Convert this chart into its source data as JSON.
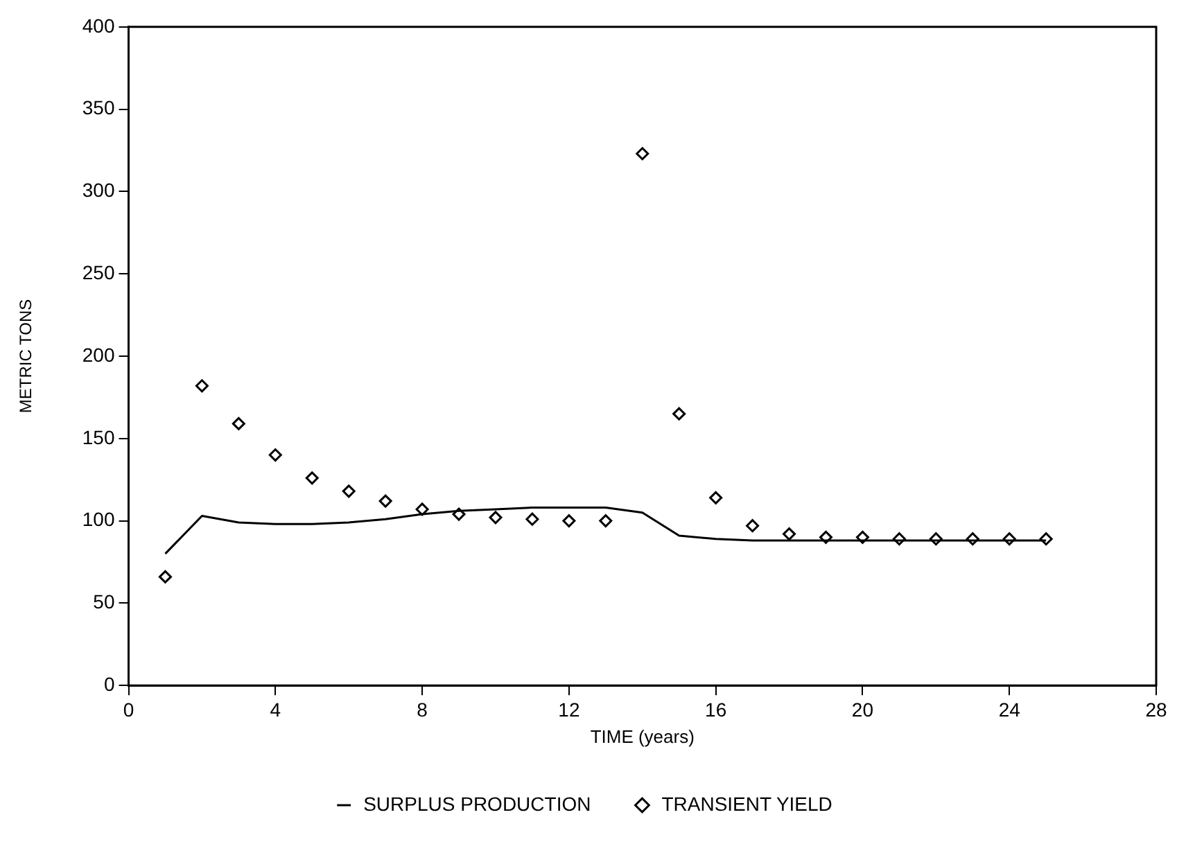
{
  "chart_data": {
    "type": "line",
    "xlabel": "TIME (years)",
    "ylabel": "METRIC TONS",
    "x": [
      1,
      2,
      3,
      4,
      5,
      6,
      7,
      8,
      9,
      10,
      11,
      12,
      13,
      14,
      15,
      16,
      17,
      18,
      19,
      20,
      21,
      22,
      23,
      24,
      25
    ],
    "xlim": [
      0,
      28
    ],
    "xticks": [
      0,
      4,
      8,
      12,
      16,
      20,
      24,
      28
    ],
    "ylim": [
      0,
      400
    ],
    "yticks": [
      0,
      50,
      100,
      150,
      200,
      250,
      300,
      350,
      400
    ],
    "grid": false,
    "legend": "bottom",
    "series": [
      {
        "name": "SURPLUS PRODUCTION",
        "type": "line",
        "color": "#000000",
        "marker": "none",
        "line_style": "solid",
        "values": [
          80,
          103,
          99,
          98,
          98,
          99,
          101,
          104,
          106,
          107,
          108,
          108,
          108,
          105,
          91,
          89,
          88,
          88,
          88,
          88,
          88,
          88,
          88,
          88,
          88
        ]
      },
      {
        "name": "TRANSIENT YIELD",
        "type": "scatter",
        "color": "#000000",
        "marker": "diamond",
        "values": [
          66,
          182,
          159,
          140,
          126,
          118,
          112,
          107,
          104,
          102,
          101,
          100,
          100,
          323,
          165,
          114,
          97,
          92,
          90,
          90,
          89,
          89,
          89,
          89,
          89
        ]
      }
    ]
  }
}
